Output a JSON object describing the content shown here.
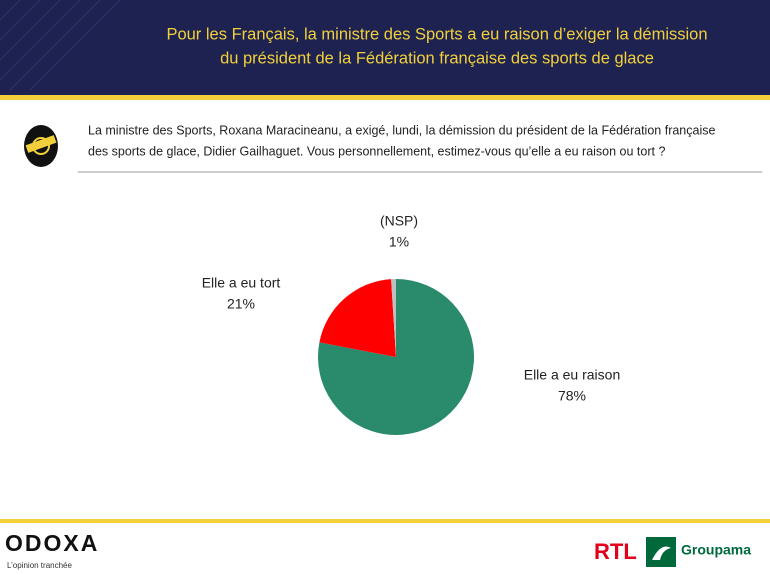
{
  "header": {
    "title_lines": [
      "Pour les Français, la ministre des Sports a eu raison d’exiger la démission",
      "du président de la Fédération française des sports de glace"
    ]
  },
  "question": {
    "lines": [
      "La ministre des Sports, Roxana Maracineanu, a exigé, lundi, la démission du président de la Fédération française",
      "des sports de glace, Didier Gailhaguet. Vous personnellement, estimez-vous qu’elle a eu raison ou tort ?"
    ]
  },
  "chart_data": {
    "type": "pie",
    "categories": [
      "Elle a eu raison",
      "Elle a eu tort",
      "(NSP)"
    ],
    "values": [
      78,
      21,
      1
    ],
    "value_labels": [
      "78%",
      "21%",
      "1%"
    ],
    "colors": [
      "#2a8a6c",
      "#ff0000",
      "#bfbfbf"
    ]
  },
  "footer": {
    "brand": "ODOXA",
    "tagline": "L’opinion tranchée",
    "partners": [
      "RTL",
      "Groupama"
    ]
  }
}
